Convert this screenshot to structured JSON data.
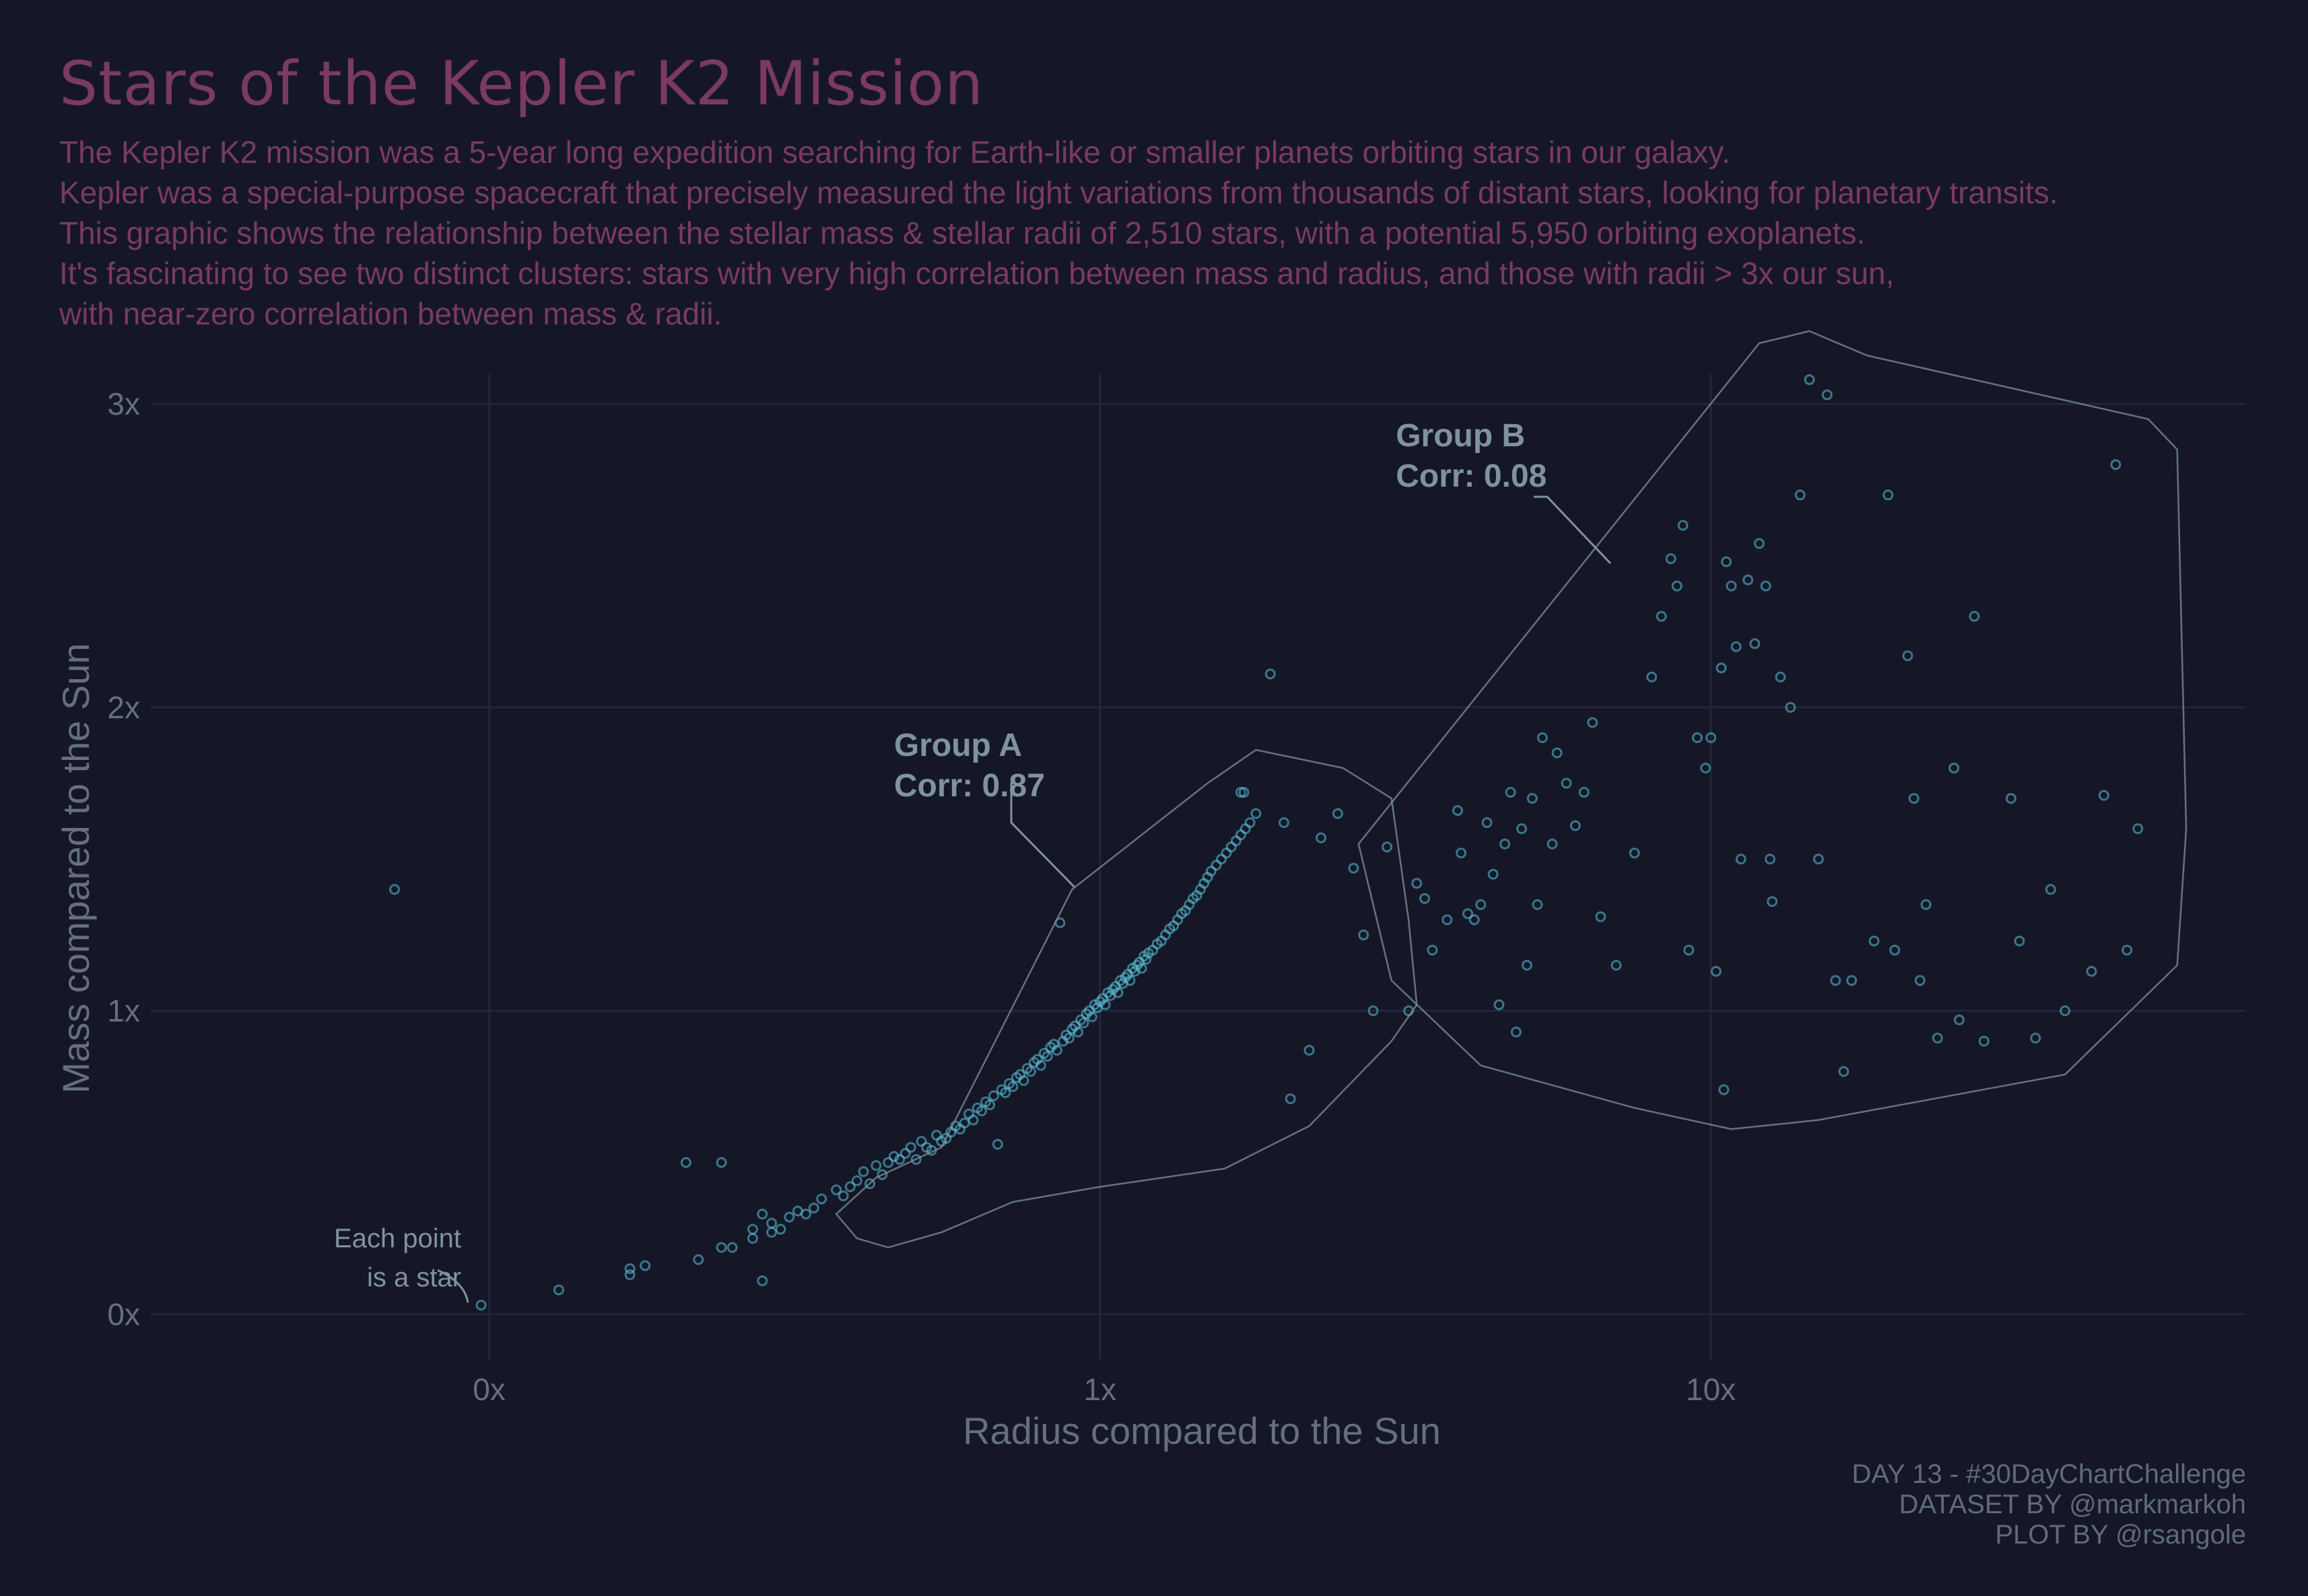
{
  "title": "Stars of the Kepler K2 Mission",
  "subtitle": [
    "The Kepler K2 mission was a 5-year long expedition searching for Earth-like or smaller planets orbiting stars in our galaxy.",
    "Kepler was a special-purpose spacecraft that precisely measured the light variations from thousands of distant stars, looking for planetary transits.",
    "This graphic shows the relationship between the stellar mass & stellar radii of 2,510 stars, with a potential 5,950 orbiting exoplanets.",
    "It's fascinating to see two distinct clusters: stars with very high correlation between mass and radius, and those with radii > 3x our sun,",
    "with near-zero correlation between mass & radii."
  ],
  "caption": [
    "DAY 13 - #30DayChartChallenge",
    "DATASET BY @markmarkoh",
    "PLOT BY @rsangole"
  ],
  "colors": {
    "background": "#151727",
    "title": "#7a3a62",
    "point": "#5bc4dc",
    "annotation": "#7f939c",
    "axis_text": "#64707c",
    "grid": "#23263a"
  },
  "chart_data": {
    "type": "scatter",
    "xlabel": "Radius compared to the Sun",
    "ylabel": "Mass compared to the Sun",
    "x_scale": "log10",
    "x_ticks": [
      {
        "value": 0.1,
        "label": "0x"
      },
      {
        "value": 1,
        "label": "1x"
      },
      {
        "value": 10,
        "label": "10x"
      }
    ],
    "y_ticks": [
      {
        "value": 0,
        "label": "0x"
      },
      {
        "value": 1,
        "label": "1x"
      },
      {
        "value": 2,
        "label": "2x"
      },
      {
        "value": 3,
        "label": "3x"
      }
    ],
    "xlim": [
      0.028,
      75
    ],
    "ylim": [
      -0.15,
      3.1
    ],
    "grid": true,
    "annotations": [
      {
        "label": "Group A",
        "sublabel": "Corr: 0.87",
        "x": 0.46,
        "y": 1.84
      },
      {
        "label": "Group B",
        "sublabel": "Corr: 0.08",
        "x": 3.05,
        "y": 2.86
      },
      {
        "label": "Each point\nis a star",
        "x": 0.09,
        "y": 0.22
      }
    ],
    "group_a_hull": [
      [
        0.37,
        0.33
      ],
      [
        0.4,
        0.25
      ],
      [
        0.45,
        0.22
      ],
      [
        0.55,
        0.27
      ],
      [
        0.72,
        0.37
      ],
      [
        1.0,
        0.42
      ],
      [
        1.6,
        0.48
      ],
      [
        2.2,
        0.62
      ],
      [
        3.0,
        0.9
      ],
      [
        3.3,
        1.02
      ],
      [
        3.2,
        1.3
      ],
      [
        3.0,
        1.7
      ],
      [
        2.5,
        1.8
      ],
      [
        1.8,
        1.86
      ],
      [
        1.5,
        1.75
      ],
      [
        0.9,
        1.4
      ],
      [
        0.55,
        0.55
      ],
      [
        0.43,
        0.45
      ]
    ],
    "group_b_hull": [
      [
        2.65,
        1.55
      ],
      [
        3.0,
        1.1
      ],
      [
        4.2,
        0.82
      ],
      [
        7.5,
        0.68
      ],
      [
        10.8,
        0.61
      ],
      [
        15.0,
        0.64
      ],
      [
        38.0,
        0.79
      ],
      [
        58.0,
        1.15
      ],
      [
        60.0,
        1.6
      ],
      [
        58.0,
        2.85
      ],
      [
        52.0,
        2.95
      ],
      [
        18.0,
        3.16
      ],
      [
        14.5,
        3.24
      ],
      [
        12.0,
        3.2
      ]
    ],
    "group_a_corr": 0.87,
    "group_b_corr": 0.08,
    "star_count": 2510,
    "points": [
      [
        0.07,
        1.4
      ],
      [
        0.097,
        0.03
      ],
      [
        0.13,
        0.08
      ],
      [
        0.17,
        0.13
      ],
      [
        0.17,
        0.15
      ],
      [
        0.18,
        0.16
      ],
      [
        0.21,
        0.5
      ],
      [
        0.22,
        0.18
      ],
      [
        0.24,
        0.5
      ],
      [
        0.24,
        0.22
      ],
      [
        0.25,
        0.22
      ],
      [
        0.27,
        0.25
      ],
      [
        0.27,
        0.28
      ],
      [
        0.28,
        0.33
      ],
      [
        0.28,
        0.11
      ],
      [
        0.29,
        0.27
      ],
      [
        0.29,
        0.3
      ],
      [
        0.3,
        0.28
      ],
      [
        0.31,
        0.32
      ],
      [
        0.32,
        0.34
      ],
      [
        0.33,
        0.33
      ],
      [
        0.34,
        0.35
      ],
      [
        0.35,
        0.38
      ],
      [
        0.37,
        0.41
      ],
      [
        0.38,
        0.39
      ],
      [
        0.39,
        0.42
      ],
      [
        0.4,
        0.44
      ],
      [
        0.41,
        0.47
      ],
      [
        0.42,
        0.43
      ],
      [
        0.43,
        0.49
      ],
      [
        0.44,
        0.46
      ],
      [
        0.45,
        0.5
      ],
      [
        0.46,
        0.52
      ],
      [
        0.47,
        0.51
      ],
      [
        0.48,
        0.53
      ],
      [
        0.49,
        0.55
      ],
      [
        0.5,
        0.51
      ],
      [
        0.51,
        0.57
      ],
      [
        0.52,
        0.55
      ],
      [
        0.53,
        0.54
      ],
      [
        0.54,
        0.59
      ],
      [
        0.55,
        0.57
      ],
      [
        0.56,
        0.58
      ],
      [
        0.57,
        0.6
      ],
      [
        0.58,
        0.62
      ],
      [
        0.59,
        0.61
      ],
      [
        0.6,
        0.63
      ],
      [
        0.61,
        0.66
      ],
      [
        0.62,
        0.64
      ],
      [
        0.63,
        0.68
      ],
      [
        0.64,
        0.67
      ],
      [
        0.65,
        0.7
      ],
      [
        0.66,
        0.69
      ],
      [
        0.67,
        0.72
      ],
      [
        0.68,
        0.56
      ],
      [
        0.69,
        0.74
      ],
      [
        0.7,
        0.73
      ],
      [
        0.71,
        0.76
      ],
      [
        0.72,
        0.75
      ],
      [
        0.73,
        0.78
      ],
      [
        0.74,
        0.79
      ],
      [
        0.75,
        0.77
      ],
      [
        0.76,
        0.81
      ],
      [
        0.77,
        0.8
      ],
      [
        0.78,
        0.83
      ],
      [
        0.79,
        0.84
      ],
      [
        0.8,
        0.82
      ],
      [
        0.81,
        0.86
      ],
      [
        0.82,
        0.85
      ],
      [
        0.83,
        0.88
      ],
      [
        0.84,
        0.89
      ],
      [
        0.85,
        0.87
      ],
      [
        0.86,
        1.29
      ],
      [
        0.87,
        0.9
      ],
      [
        0.88,
        0.92
      ],
      [
        0.89,
        0.91
      ],
      [
        0.9,
        0.94
      ],
      [
        0.91,
        0.95
      ],
      [
        0.92,
        0.93
      ],
      [
        0.93,
        0.97
      ],
      [
        0.94,
        0.96
      ],
      [
        0.95,
        0.99
      ],
      [
        0.96,
        1.0
      ],
      [
        0.97,
        0.98
      ],
      [
        0.98,
        1.02
      ],
      [
        0.99,
        1.01
      ],
      [
        1.0,
        1.03
      ],
      [
        1.01,
        1.04
      ],
      [
        1.02,
        1.02
      ],
      [
        1.03,
        1.06
      ],
      [
        1.04,
        1.05
      ],
      [
        1.05,
        1.07
      ],
      [
        1.06,
        1.08
      ],
      [
        1.07,
        1.06
      ],
      [
        1.08,
        1.1
      ],
      [
        1.09,
        1.09
      ],
      [
        1.1,
        1.11
      ],
      [
        1.11,
        1.12
      ],
      [
        1.12,
        1.1
      ],
      [
        1.13,
        1.14
      ],
      [
        1.14,
        1.13
      ],
      [
        1.15,
        1.15
      ],
      [
        1.16,
        1.16
      ],
      [
        1.17,
        1.14
      ],
      [
        1.18,
        1.18
      ],
      [
        1.19,
        1.17
      ],
      [
        1.2,
        1.19
      ],
      [
        1.22,
        1.2
      ],
      [
        1.24,
        1.22
      ],
      [
        1.26,
        1.23
      ],
      [
        1.28,
        1.25
      ],
      [
        1.3,
        1.27
      ],
      [
        1.32,
        1.28
      ],
      [
        1.34,
        1.3
      ],
      [
        1.36,
        1.32
      ],
      [
        1.38,
        1.33
      ],
      [
        1.4,
        1.35
      ],
      [
        1.42,
        1.37
      ],
      [
        1.44,
        1.38
      ],
      [
        1.46,
        1.4
      ],
      [
        1.48,
        1.42
      ],
      [
        1.5,
        1.44
      ],
      [
        1.52,
        1.46
      ],
      [
        1.55,
        1.48
      ],
      [
        1.58,
        1.5
      ],
      [
        1.61,
        1.52
      ],
      [
        1.64,
        1.54
      ],
      [
        1.67,
        1.56
      ],
      [
        1.7,
        1.58
      ],
      [
        1.73,
        1.6
      ],
      [
        1.76,
        1.62
      ],
      [
        1.8,
        1.65
      ],
      [
        1.7,
        1.72
      ],
      [
        1.72,
        1.72
      ],
      [
        1.9,
        2.11
      ],
      [
        2.0,
        1.62
      ],
      [
        2.05,
        0.71
      ],
      [
        2.2,
        0.87
      ],
      [
        2.3,
        1.57
      ],
      [
        2.45,
        1.65
      ],
      [
        2.6,
        1.47
      ],
      [
        2.7,
        1.25
      ],
      [
        2.8,
        1.0
      ],
      [
        2.95,
        1.54
      ],
      [
        3.2,
        1.0
      ],
      [
        3.3,
        1.42
      ],
      [
        3.4,
        1.37
      ],
      [
        3.5,
        1.2
      ],
      [
        3.7,
        1.3
      ],
      [
        3.85,
        1.66
      ],
      [
        3.9,
        1.52
      ],
      [
        4.0,
        1.32
      ],
      [
        4.1,
        1.3
      ],
      [
        4.2,
        1.35
      ],
      [
        4.3,
        1.62
      ],
      [
        4.4,
        1.45
      ],
      [
        4.5,
        1.02
      ],
      [
        4.6,
        1.55
      ],
      [
        4.7,
        1.72
      ],
      [
        4.8,
        0.93
      ],
      [
        4.9,
        1.6
      ],
      [
        5.0,
        1.15
      ],
      [
        5.1,
        1.7
      ],
      [
        5.2,
        1.35
      ],
      [
        5.3,
        1.9
      ],
      [
        5.5,
        1.55
      ],
      [
        5.6,
        1.85
      ],
      [
        5.8,
        1.75
      ],
      [
        6.0,
        1.61
      ],
      [
        6.2,
        1.72
      ],
      [
        6.4,
        1.95
      ],
      [
        6.6,
        1.31
      ],
      [
        7.0,
        1.15
      ],
      [
        7.5,
        1.52
      ],
      [
        8.0,
        2.1
      ],
      [
        8.3,
        2.3
      ],
      [
        8.6,
        2.49
      ],
      [
        8.8,
        2.4
      ],
      [
        9.0,
        2.6
      ],
      [
        9.2,
        1.2
      ],
      [
        9.5,
        1.9
      ],
      [
        9.8,
        1.8
      ],
      [
        10.0,
        1.9
      ],
      [
        10.2,
        1.13
      ],
      [
        10.4,
        2.13
      ],
      [
        10.6,
        2.48
      ],
      [
        10.8,
        2.4
      ],
      [
        11.0,
        2.2
      ],
      [
        11.2,
        1.5
      ],
      [
        11.5,
        2.42
      ],
      [
        11.8,
        2.21
      ],
      [
        12.0,
        2.54
      ],
      [
        12.3,
        2.4
      ],
      [
        12.6,
        1.36
      ],
      [
        13.0,
        2.1
      ],
      [
        13.5,
        2.0
      ],
      [
        14.0,
        2.7
      ],
      [
        14.5,
        3.08
      ],
      [
        15.5,
        3.03
      ],
      [
        16.0,
        1.1
      ],
      [
        17.0,
        1.1
      ],
      [
        18.5,
        1.23
      ],
      [
        19.5,
        2.7
      ],
      [
        20.0,
        1.2
      ],
      [
        21.0,
        2.17
      ],
      [
        21.5,
        1.7
      ],
      [
        22.0,
        1.1
      ],
      [
        22.5,
        1.35
      ],
      [
        23.5,
        0.91
      ],
      [
        25.0,
        1.8
      ],
      [
        27.0,
        2.3
      ],
      [
        28.0,
        0.9
      ],
      [
        31.0,
        1.7
      ],
      [
        32.0,
        1.23
      ],
      [
        34.0,
        0.91
      ],
      [
        36.0,
        1.4
      ],
      [
        38.0,
        1.0
      ],
      [
        42.0,
        1.13
      ],
      [
        44.0,
        1.71
      ],
      [
        46.0,
        2.8
      ],
      [
        48.0,
        1.2
      ],
      [
        50.0,
        1.6
      ],
      [
        10.5,
        0.74
      ],
      [
        12.5,
        1.5
      ],
      [
        15.0,
        1.5
      ],
      [
        16.5,
        0.8
      ],
      [
        25.5,
        0.97
      ]
    ]
  }
}
